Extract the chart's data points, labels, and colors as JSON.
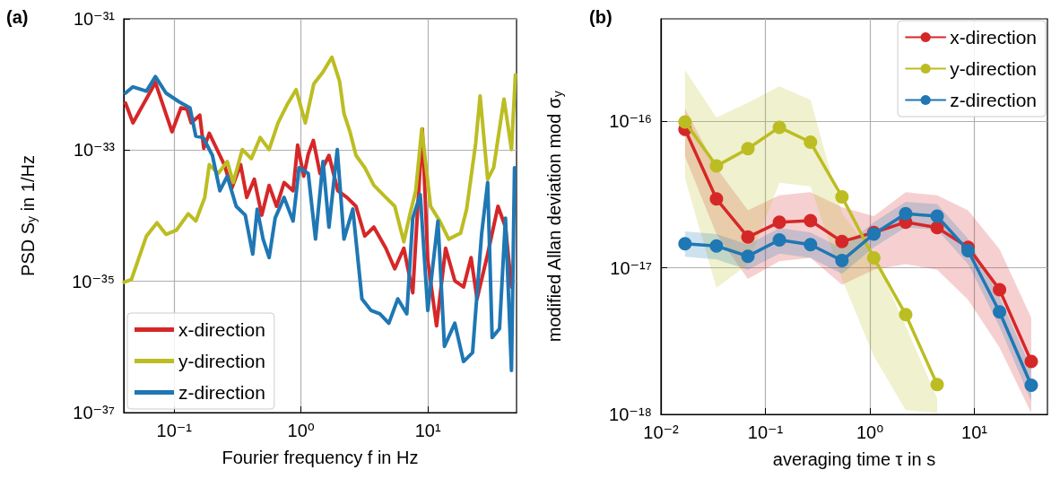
{
  "chart_data": [
    {
      "type": "line",
      "title": "(a)",
      "xlabel": "Fourier frequency f in Hz",
      "ylabel": "PSD S$_{y}$ in 1/Hz",
      "log": "xy",
      "grid": true,
      "legend": "bottom left",
      "marker": "none",
      "line_style": "solid",
      "xlim": [
        0.04,
        50
      ],
      "xticks": [
        {
          "value": 0.1,
          "label": "10⁻¹"
        },
        {
          "value": 1,
          "label": "10⁰"
        },
        {
          "value": 10,
          "label": "10¹"
        }
      ],
      "ylim": [
        1e-37,
        1e-31
      ],
      "yticks": [
        {
          "value": 1e-37,
          "label": "10⁻³⁷"
        },
        {
          "value": 1e-35,
          "label": "10⁻³⁵"
        },
        {
          "value": 1e-33,
          "label": "10⁻³³"
        },
        {
          "value": 1e-31,
          "label": "10⁻³¹"
        }
      ],
      "series": [
        {
          "name": "x-direction",
          "color": "#d62728",
          "x": [
            0.0413,
            0.0473,
            0.0711,
            0.096,
            0.113,
            0.126,
            0.136,
            0.159,
            0.171,
            0.189,
            0.229,
            0.248,
            0.284,
            0.334,
            0.373,
            0.428,
            0.49,
            0.56,
            0.641,
            0.735,
            0.865,
            0.94,
            1.05,
            1.14,
            1.25,
            1.41,
            1.66,
            1.95,
            2.3,
            2.71,
            3.18,
            3.75,
            4.66,
            5.48,
            6.46,
            7.6,
            9.04,
            9.98,
            11.7,
            13.8,
            16.3,
            19.1,
            21.9,
            24.4,
            29.6,
            35.7,
            40.9,
            45.6
          ],
          "values": [
            5.2e-33,
            2.6e-33,
            1.07e-32,
            1.9e-33,
            4.4e-33,
            4.2e-33,
            2.6e-33,
            3.4e-33,
            1.07e-33,
            1.8e-33,
            8.3e-34,
            6e-34,
            2.6e-34,
            6e-34,
            1.9e-34,
            3.6e-34,
            1.02e-34,
            2.9e-34,
            1.39e-34,
            3.2e-34,
            2.4e-34,
            1.19e-33,
            4e-34,
            8.7e-34,
            1.4e-33,
            4.4e-34,
            8.3e-34,
            2.4e-34,
            1.9e-34,
            1.39e-34,
            4.9e-35,
            6.7e-35,
            3.2e-35,
            1.55e-35,
            3.2e-35,
            6.7e-36,
            2.1e-33,
            2.1e-35,
            2.1e-36,
            3.2e-35,
            1.02e-35,
            8.2e-36,
            2.3e-35,
            5.4e-36,
            2.6e-35,
            1.39e-34,
            6.7e-35,
            8.2e-36
          ]
        },
        {
          "name": "y-direction",
          "color": "#bcbd22",
          "x": [
            0.0402,
            0.046,
            0.0604,
            0.0731,
            0.0861,
            0.104,
            0.129,
            0.148,
            0.174,
            0.189,
            0.222,
            0.262,
            0.292,
            0.344,
            0.405,
            0.476,
            0.56,
            0.659,
            0.776,
            0.914,
            1.08,
            1.26,
            1.49,
            1.75,
            2.01,
            2.18,
            2.43,
            2.71,
            3.18,
            3.75,
            4.66,
            5.48,
            6.46,
            7.19,
            8.02,
            8.95,
            10.5,
            12.4,
            14.6,
            18.1,
            20.2,
            23.8,
            25.8,
            29.6,
            33.0,
            39.8,
            45.6,
            49.0
          ],
          "values": [
            9.7e-36,
            1.07e-35,
            4.9e-35,
            7.8e-35,
            5.2e-35,
            6e-35,
            1.07e-34,
            8.3e-35,
            1.9e-34,
            6e-34,
            4.4e-34,
            6.7e-34,
            3.2e-34,
            1.02e-33,
            7.4e-34,
            1.55e-33,
            1.02e-33,
            2.6e-33,
            4.9e-33,
            8.3e-33,
            2.6e-33,
            1.02e-32,
            1.55e-32,
            2.6e-32,
            1.13e-32,
            3.6e-33,
            1.9e-33,
            8.3e-34,
            5.4e-34,
            2.9e-34,
            1.9e-34,
            1.39e-34,
            4e-35,
            1.02e-34,
            2.4e-34,
            2.1e-33,
            1.39e-34,
            8.3e-35,
            4.4e-35,
            5.4e-35,
            1.26e-34,
            1.26e-33,
            6.7e-33,
            3.6e-34,
            5.4e-34,
            6e-33,
            1.02e-33,
            1.4e-32
          ]
        },
        {
          "name": "z-direction",
          "color": "#1f77b4",
          "x": [
            0.0413,
            0.0473,
            0.0604,
            0.0711,
            0.0861,
            0.11,
            0.133,
            0.148,
            0.169,
            0.2,
            0.229,
            0.262,
            0.308,
            0.363,
            0.416,
            0.451,
            0.502,
            0.56,
            0.625,
            0.735,
            0.865,
            0.964,
            1.14,
            1.3,
            1.49,
            1.66,
            1.93,
            2.18,
            2.56,
            3.02,
            3.56,
            4.18,
            4.92,
            5.79,
            6.82,
            7.6,
            8.71,
            9.98,
            12.0,
            13.5,
            16.3,
            19.1,
            22.5,
            26.5,
            29.6,
            32.1,
            36.7,
            40.9,
            45.6,
            48.2
          ],
          "values": [
            7.4e-33,
            9.2e-33,
            7.9e-33,
            1.32e-32,
            7.4e-33,
            5.4e-33,
            4.4e-33,
            1.63e-33,
            1.55e-33,
            8.3e-34,
            2.4e-34,
            4e-34,
            1.39e-34,
            1.02e-34,
            2.6e-35,
            1.26e-34,
            4.4e-35,
            2.3e-35,
            9.2e-35,
            1.9e-34,
            8.3e-35,
            5.4e-34,
            4.4e-34,
            4.4e-35,
            6.7e-34,
            6.7e-35,
            1.02e-33,
            4.4e-35,
            1.26e-34,
            5.4e-36,
            3.6e-36,
            3.2e-36,
            2.3e-36,
            5.4e-36,
            3.2e-36,
            9.2e-35,
            2.1e-34,
            3.6e-36,
            8.3e-35,
            1.02e-36,
            2.3e-36,
            6e-37,
            8.2e-37,
            5.2e-35,
            3.2e-34,
            1.39e-36,
            1.9e-36,
            9.2e-35,
            4.4e-37,
            5.4e-34
          ]
        }
      ]
    },
    {
      "type": "line",
      "title": "(b)",
      "xlabel": "averaging time τ in s",
      "ylabel": "modified Allan deviation mod σ$_{y}$",
      "log": "xy",
      "grid": true,
      "legend": "top right",
      "marker": "circle",
      "line_style": "solid",
      "xlim": [
        0.01,
        50
      ],
      "xticks": [
        {
          "value": 0.01,
          "label": "10⁻²"
        },
        {
          "value": 0.1,
          "label": "10⁻¹"
        },
        {
          "value": 1,
          "label": "10⁰"
        },
        {
          "value": 10,
          "label": "10¹"
        }
      ],
      "ylim": [
        1e-18,
        5e-16
      ],
      "yticks": [
        {
          "value": 1e-18,
          "label": "10⁻¹⁸"
        },
        {
          "value": 1e-17,
          "label": "10⁻¹⁷"
        },
        {
          "value": 1e-16,
          "label": "10⁻¹⁶"
        }
      ],
      "x": [
        0.017,
        0.034,
        0.068,
        0.136,
        0.27,
        0.54,
        1.09,
        2.2,
        4.4,
        8.7,
        17.4,
        35
      ],
      "series": [
        {
          "name": "x-direction",
          "color": "#d62728",
          "values": [
            8.8e-17,
            2.95e-17,
            1.62e-17,
            2.05e-17,
            2.1e-17,
            1.51e-17,
            1.74e-17,
            2.05e-17,
            1.88e-17,
            1.38e-17,
            7.1e-18,
            2.3e-18
          ],
          "upper": [
            1.22e-16,
            4.8e-17,
            2.47e-17,
            3.13e-17,
            3.28e-17,
            2.59e-17,
            2.25e-17,
            3.28e-17,
            3.13e-17,
            2.47e-17,
            1.34e-17,
            4.57e-18
          ],
          "lower": [
            5.75e-17,
            1.7e-17,
            8.4e-18,
            1.11e-17,
            1.17e-17,
            7.66e-18,
            9.7e-18,
            1.06e-17,
            9.7e-18,
            6.05e-18,
            2.86e-18,
            1.02e-18
          ]
        },
        {
          "name": "y-direction",
          "color": "#bcbd22",
          "x": [
            0.017,
            0.034,
            0.068,
            0.136,
            0.27,
            0.54,
            1.09,
            2.2,
            4.4
          ],
          "values": [
            9.9e-17,
            4.95e-17,
            6.5e-17,
            9.1e-17,
            7.2e-17,
            3.05e-17,
            1.17e-17,
            4.8e-18,
            1.6e-18
          ],
          "upper": [
            2.24e-16,
            1.06e-16,
            1.34e-16,
            1.73e-16,
            1.4e-16,
            2.36e-17,
            1.22e-17,
            4e-18,
            1.29e-18
          ],
          "lower": [
            4.1e-17,
            7.3e-18,
            1.06e-17,
            3.8e-17,
            3.6e-17,
            8.4e-18,
            2.5e-18,
            1.07e-18,
            1.02e-18
          ]
        },
        {
          "name": "z-direction",
          "color": "#1f77b4",
          "values": [
            1.46e-17,
            1.41e-17,
            1.2e-17,
            1.55e-17,
            1.44e-17,
            1.12e-17,
            1.7e-17,
            2.34e-17,
            2.25e-17,
            1.31e-17,
            5e-18,
            1.58e-18
          ],
          "upper": [
            1.77e-17,
            1.7e-17,
            1.44e-17,
            1.87e-17,
            1.74e-17,
            1.36e-17,
            2.05e-17,
            2.82e-17,
            2.72e-17,
            1.58e-17,
            6.35e-18,
            2.06e-18
          ],
          "lower": [
            1.19e-17,
            1.14e-17,
            9.7e-18,
            1.25e-17,
            1.17e-17,
            9.1e-18,
            1.38e-17,
            1.89e-17,
            1.82e-17,
            1.06e-17,
            3.97e-18,
            1.23e-18
          ]
        }
      ]
    }
  ]
}
